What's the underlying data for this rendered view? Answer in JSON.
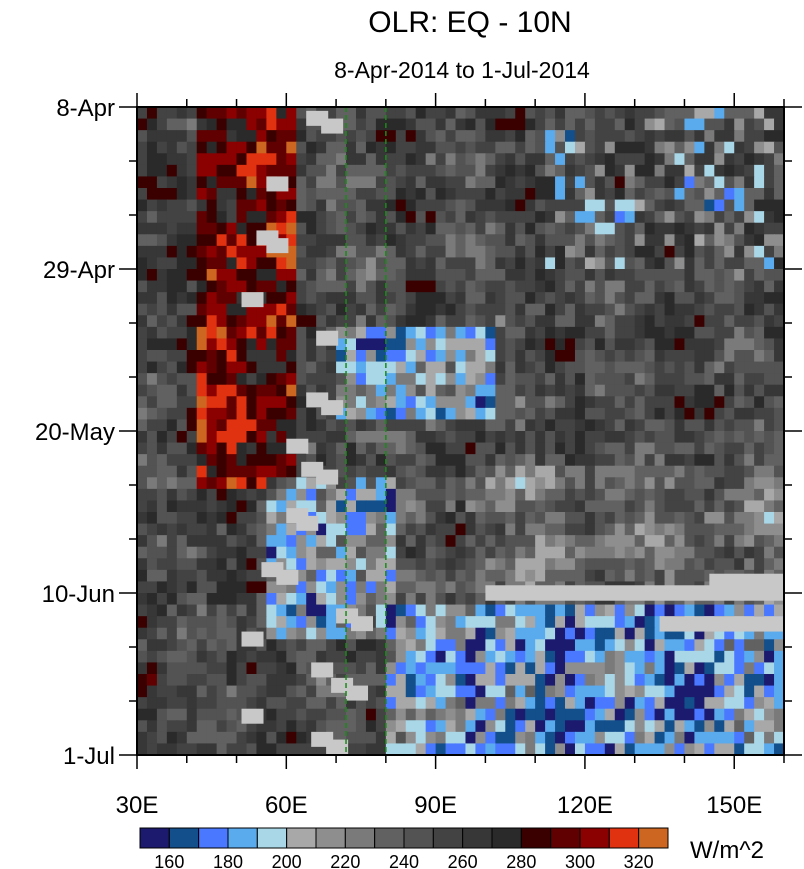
{
  "chart_data": {
    "type": "heatmap",
    "title": "OLR: EQ - 10N",
    "subtitle": "8-Apr-2014 to 1-Jul-2014",
    "x_axis": {
      "range": [
        30,
        160
      ],
      "unit": "degrees E",
      "tick_values": [
        30,
        60,
        90,
        120,
        150
      ],
      "tick_labels": [
        "30E",
        "60E",
        "90E",
        "120E",
        "150E"
      ]
    },
    "y_axis": {
      "range_days": [
        0,
        84
      ],
      "tick_days": [
        0,
        21,
        42,
        63,
        84
      ],
      "tick_labels": [
        "8-Apr",
        "29-Apr",
        "20-May",
        "10-Jun",
        "1-Jul"
      ],
      "direction": "time increasing downward"
    },
    "reference_lines_lon": [
      72,
      80
    ],
    "colorbar": {
      "unit": "W/m^2",
      "levels": [
        160,
        170,
        180,
        190,
        200,
        210,
        220,
        230,
        240,
        250,
        260,
        270,
        280,
        290,
        300,
        310,
        320
      ],
      "labels": [
        "160",
        "180",
        "200",
        "220",
        "240",
        "260",
        "280",
        "300",
        "320"
      ],
      "colors": [
        "#1b1a6f",
        "#134f8b",
        "#4a78ff",
        "#5aaaee",
        "#a9d7e8",
        "#a8a8a8",
        "#8e8e8e",
        "#7a7a7a",
        "#616161",
        "#535353",
        "#434343",
        "#373737",
        "#2a2a2a",
        "#3a0000",
        "#610000",
        "#8b0000",
        "#e03211",
        "#cd6620"
      ]
    },
    "missing_color": "#c8c8c8",
    "features": [
      {
        "desc": "high OLR (>290)",
        "lon": [
          42,
          60
        ],
        "days": [
          0,
          48
        ]
      },
      {
        "desc": "low OLR (<190)",
        "lon": [
          70,
          100
        ],
        "days": [
          28,
          40
        ]
      },
      {
        "desc": "low OLR (<190)",
        "lon": [
          55,
          80
        ],
        "days": [
          48,
          68
        ]
      },
      {
        "desc": "low OLR (<190)",
        "lon": [
          80,
          160
        ],
        "days": [
          64,
          84
        ]
      }
    ]
  }
}
